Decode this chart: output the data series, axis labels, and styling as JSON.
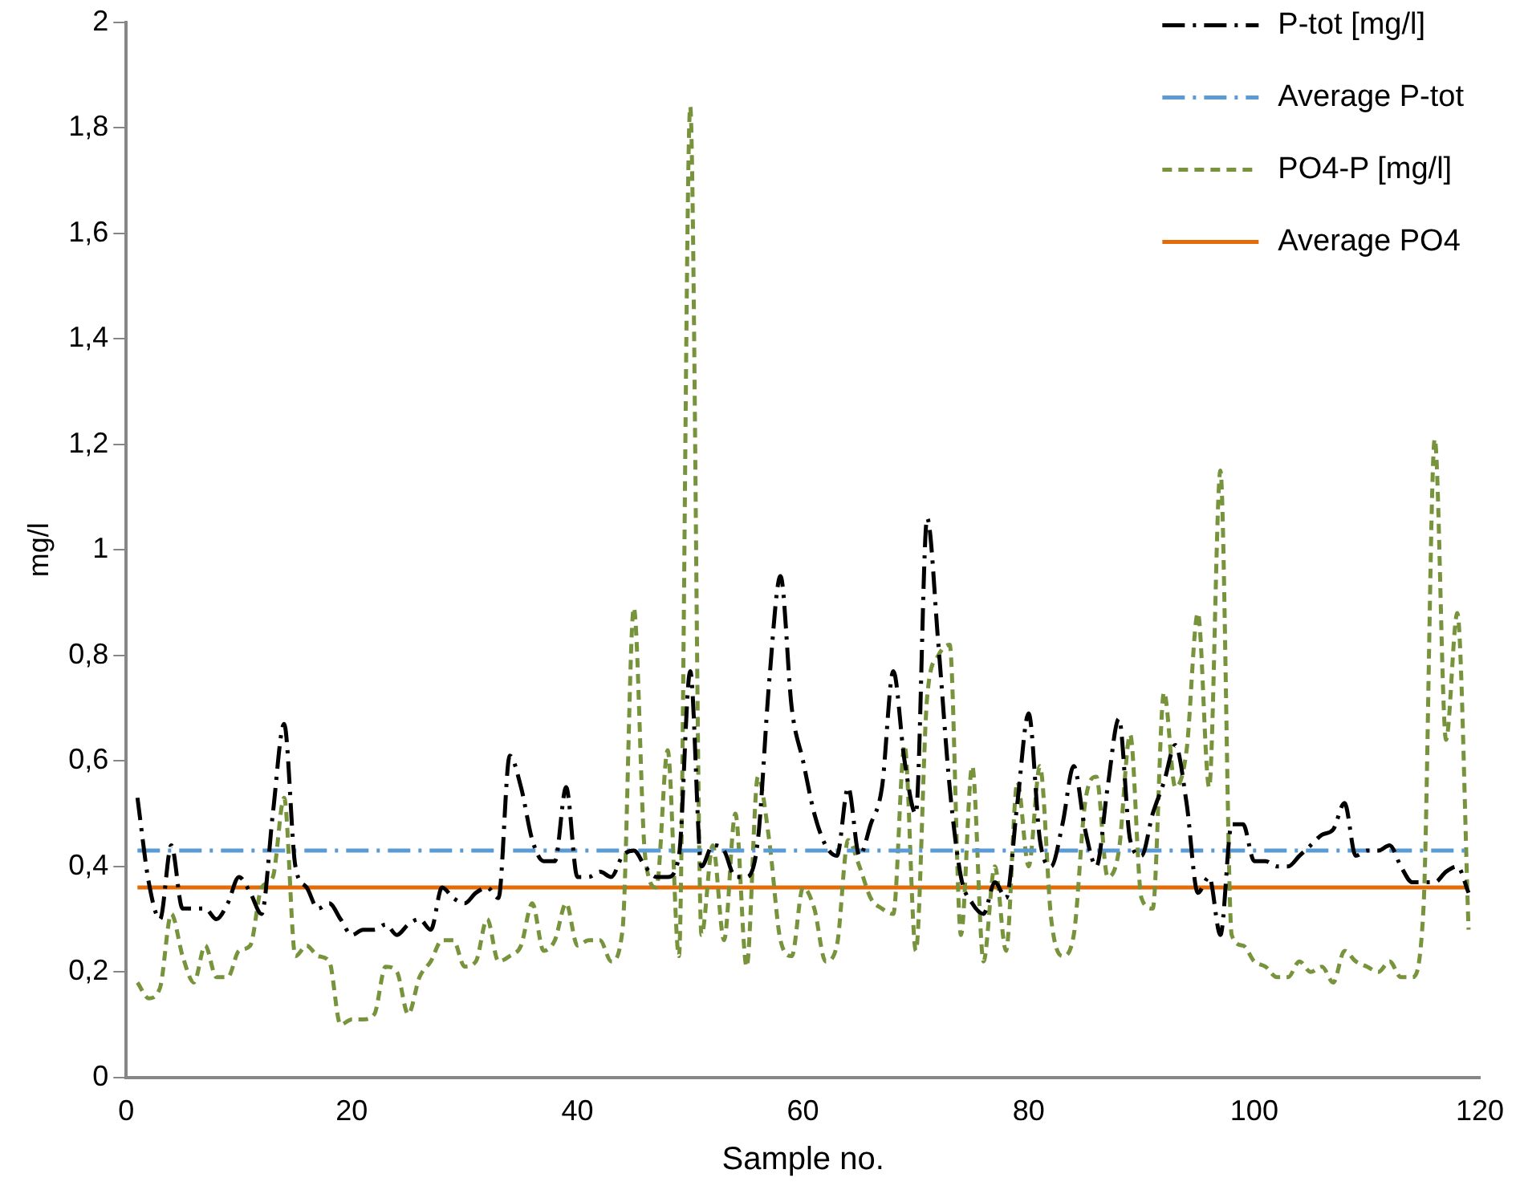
{
  "chart_data": {
    "type": "line",
    "xlabel": "Sample no.",
    "ylabel": "mg/l",
    "x": [
      1,
      2,
      3,
      4,
      5,
      6,
      7,
      8,
      9,
      10,
      11,
      12,
      13,
      14,
      15,
      16,
      17,
      18,
      19,
      20,
      21,
      22,
      23,
      24,
      25,
      26,
      27,
      28,
      29,
      30,
      31,
      32,
      33,
      34,
      35,
      36,
      37,
      38,
      39,
      40,
      41,
      42,
      43,
      44,
      45,
      46,
      47,
      48,
      49,
      50,
      51,
      52,
      53,
      54,
      55,
      56,
      57,
      58,
      59,
      60,
      61,
      62,
      63,
      64,
      65,
      66,
      67,
      68,
      69,
      70,
      71,
      72,
      73,
      74,
      75,
      76,
      77,
      78,
      79,
      80,
      81,
      82,
      83,
      84,
      85,
      86,
      87,
      88,
      89,
      90,
      91,
      92,
      93,
      94,
      95,
      96,
      97,
      98,
      99,
      100,
      101,
      102,
      103,
      104,
      105,
      106,
      107,
      108,
      109,
      110,
      111,
      112,
      113,
      114,
      115,
      116,
      117,
      118,
      119
    ],
    "series": [
      {
        "name": "P-tot [mg/l]",
        "color": "#000000",
        "line_style": "dashdot",
        "values": [
          0.53,
          0.37,
          0.3,
          0.44,
          0.32,
          0.32,
          0.32,
          0.3,
          0.33,
          0.38,
          0.35,
          0.31,
          0.5,
          0.67,
          0.4,
          0.36,
          0.32,
          0.33,
          0.3,
          0.27,
          0.28,
          0.28,
          0.29,
          0.27,
          0.29,
          0.3,
          0.28,
          0.36,
          0.34,
          0.33,
          0.35,
          0.36,
          0.34,
          0.61,
          0.55,
          0.45,
          0.41,
          0.41,
          0.55,
          0.38,
          0.38,
          0.39,
          0.38,
          0.42,
          0.43,
          0.4,
          0.38,
          0.38,
          0.42,
          0.77,
          0.4,
          0.44,
          0.43,
          0.38,
          0.38,
          0.45,
          0.75,
          0.95,
          0.7,
          0.6,
          0.5,
          0.44,
          0.42,
          0.55,
          0.42,
          0.48,
          0.55,
          0.77,
          0.6,
          0.5,
          1.06,
          0.82,
          0.55,
          0.38,
          0.33,
          0.31,
          0.37,
          0.34,
          0.52,
          0.69,
          0.45,
          0.4,
          0.48,
          0.59,
          0.47,
          0.4,
          0.55,
          0.68,
          0.45,
          0.42,
          0.5,
          0.56,
          0.63,
          0.52,
          0.35,
          0.38,
          0.27,
          0.48,
          0.48,
          0.41,
          0.41,
          0.4,
          0.4,
          0.42,
          0.44,
          0.46,
          0.47,
          0.52,
          0.42,
          0.43,
          0.43,
          0.44,
          0.4,
          0.37,
          0.37,
          0.37,
          0.39,
          0.4,
          0.35
        ]
      },
      {
        "name": "Average P-tot",
        "color": "#5b9bd5",
        "line_style": "dashdot",
        "values": [
          0.43,
          0.43,
          0.43,
          0.43,
          0.43,
          0.43,
          0.43,
          0.43,
          0.43,
          0.43,
          0.43,
          0.43,
          0.43,
          0.43,
          0.43,
          0.43,
          0.43,
          0.43,
          0.43,
          0.43,
          0.43,
          0.43,
          0.43,
          0.43,
          0.43,
          0.43,
          0.43,
          0.43,
          0.43,
          0.43,
          0.43,
          0.43,
          0.43,
          0.43,
          0.43,
          0.43,
          0.43,
          0.43,
          0.43,
          0.43,
          0.43,
          0.43,
          0.43,
          0.43,
          0.43,
          0.43,
          0.43,
          0.43,
          0.43,
          0.43,
          0.43,
          0.43,
          0.43,
          0.43,
          0.43,
          0.43,
          0.43,
          0.43,
          0.43,
          0.43,
          0.43,
          0.43,
          0.43,
          0.43,
          0.43,
          0.43,
          0.43,
          0.43,
          0.43,
          0.43,
          0.43,
          0.43,
          0.43,
          0.43,
          0.43,
          0.43,
          0.43,
          0.43,
          0.43,
          0.43,
          0.43,
          0.43,
          0.43,
          0.43,
          0.43,
          0.43,
          0.43,
          0.43,
          0.43,
          0.43,
          0.43,
          0.43,
          0.43,
          0.43,
          0.43,
          0.43,
          0.43,
          0.43,
          0.43,
          0.43,
          0.43,
          0.43,
          0.43,
          0.43,
          0.43,
          0.43,
          0.43,
          0.43,
          0.43,
          0.43,
          0.43,
          0.43,
          0.43,
          0.43,
          0.43,
          0.43,
          0.43,
          0.43,
          0.43
        ]
      },
      {
        "name": "PO4-P [mg/l]",
        "color": "#77933c",
        "line_style": "dashed",
        "values": [
          0.18,
          0.15,
          0.17,
          0.31,
          0.23,
          0.18,
          0.25,
          0.19,
          0.19,
          0.24,
          0.25,
          0.36,
          0.38,
          0.53,
          0.23,
          0.25,
          0.23,
          0.22,
          0.1,
          0.11,
          0.11,
          0.12,
          0.21,
          0.2,
          0.12,
          0.19,
          0.22,
          0.26,
          0.26,
          0.21,
          0.22,
          0.3,
          0.22,
          0.23,
          0.25,
          0.33,
          0.24,
          0.26,
          0.33,
          0.25,
          0.26,
          0.26,
          0.22,
          0.28,
          0.89,
          0.42,
          0.36,
          0.62,
          0.23,
          1.84,
          0.27,
          0.44,
          0.26,
          0.5,
          0.21,
          0.57,
          0.45,
          0.26,
          0.23,
          0.36,
          0.32,
          0.22,
          0.25,
          0.45,
          0.4,
          0.34,
          0.32,
          0.31,
          0.63,
          0.24,
          0.72,
          0.8,
          0.82,
          0.27,
          0.59,
          0.22,
          0.4,
          0.24,
          0.56,
          0.4,
          0.59,
          0.3,
          0.23,
          0.27,
          0.52,
          0.57,
          0.38,
          0.43,
          0.65,
          0.34,
          0.32,
          0.73,
          0.55,
          0.62,
          0.88,
          0.55,
          1.15,
          0.27,
          0.25,
          0.22,
          0.21,
          0.19,
          0.19,
          0.22,
          0.2,
          0.21,
          0.18,
          0.24,
          0.22,
          0.21,
          0.2,
          0.22,
          0.19,
          0.19,
          0.32,
          1.21,
          0.64,
          0.88,
          0.28
        ]
      },
      {
        "name": "Average PO4",
        "color": "#e36c09",
        "line_style": "solid",
        "values": [
          0.36,
          0.36,
          0.36,
          0.36,
          0.36,
          0.36,
          0.36,
          0.36,
          0.36,
          0.36,
          0.36,
          0.36,
          0.36,
          0.36,
          0.36,
          0.36,
          0.36,
          0.36,
          0.36,
          0.36,
          0.36,
          0.36,
          0.36,
          0.36,
          0.36,
          0.36,
          0.36,
          0.36,
          0.36,
          0.36,
          0.36,
          0.36,
          0.36,
          0.36,
          0.36,
          0.36,
          0.36,
          0.36,
          0.36,
          0.36,
          0.36,
          0.36,
          0.36,
          0.36,
          0.36,
          0.36,
          0.36,
          0.36,
          0.36,
          0.36,
          0.36,
          0.36,
          0.36,
          0.36,
          0.36,
          0.36,
          0.36,
          0.36,
          0.36,
          0.36,
          0.36,
          0.36,
          0.36,
          0.36,
          0.36,
          0.36,
          0.36,
          0.36,
          0.36,
          0.36,
          0.36,
          0.36,
          0.36,
          0.36,
          0.36,
          0.36,
          0.36,
          0.36,
          0.36,
          0.36,
          0.36,
          0.36,
          0.36,
          0.36,
          0.36,
          0.36,
          0.36,
          0.36,
          0.36,
          0.36,
          0.36,
          0.36,
          0.36,
          0.36,
          0.36,
          0.36,
          0.36,
          0.36,
          0.36,
          0.36,
          0.36,
          0.36,
          0.36,
          0.36,
          0.36,
          0.36,
          0.36,
          0.36,
          0.36,
          0.36,
          0.36,
          0.36,
          0.36,
          0.36,
          0.36,
          0.36,
          0.36,
          0.36,
          0.36
        ]
      }
    ],
    "xlim": [
      0,
      120
    ],
    "xticks": [
      0,
      20,
      40,
      60,
      80,
      100,
      120
    ],
    "ylim": [
      0,
      2
    ],
    "yticks": [
      0,
      {
        "value": 0.2,
        "label": "0,2"
      },
      {
        "value": 0.4,
        "label": "0,4"
      },
      {
        "value": 0.6,
        "label": "0,6"
      },
      {
        "value": 0.8,
        "label": "0,8"
      },
      1,
      {
        "value": 1.2,
        "label": "1,2"
      },
      {
        "value": 1.4,
        "label": "1,4"
      },
      {
        "value": 1.6,
        "label": "1,6"
      },
      {
        "value": 1.8,
        "label": "1,8"
      },
      2
    ],
    "grid": false,
    "legend": "top right",
    "marker": "none"
  }
}
